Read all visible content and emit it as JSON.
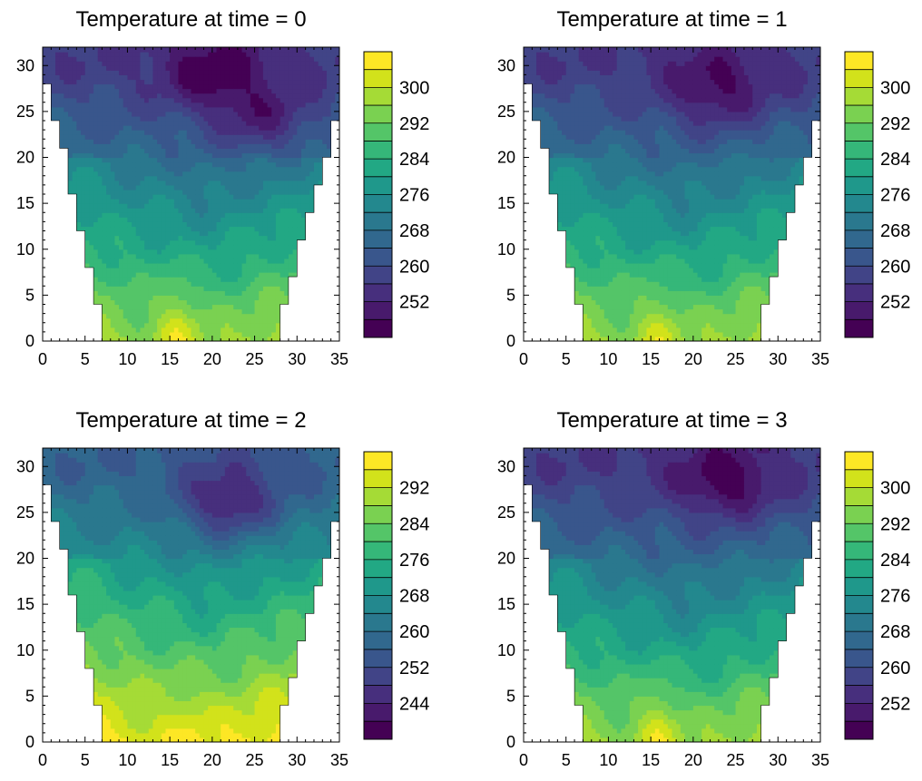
{
  "chart_data": [
    {
      "type": "contour",
      "title": "Temperature at time = 0",
      "xlim": [
        0,
        35
      ],
      "ylim": [
        0,
        32
      ],
      "xticks": [
        0,
        5,
        10,
        15,
        20,
        25,
        30,
        35
      ],
      "yticks": [
        0,
        5,
        10,
        15,
        20,
        25,
        30
      ],
      "colorbar": {
        "levels": [
          248,
          252,
          256,
          260,
          264,
          268,
          272,
          276,
          280,
          284,
          288,
          292,
          296,
          300,
          304
        ],
        "tick_labels": [
          "252",
          "260",
          "268",
          "276",
          "284",
          "292",
          "300"
        ]
      },
      "warm_core": {
        "x": 16,
        "y": 1,
        "value": 302
      },
      "cold_core": [
        {
          "x": 20,
          "y": 29,
          "value": 247
        },
        {
          "x": 26,
          "y": 24,
          "value": 248
        }
      ],
      "valley_top_y": 6
    },
    {
      "type": "contour",
      "title": "Temperature at time = 1",
      "xlim": [
        0,
        35
      ],
      "ylim": [
        0,
        32
      ],
      "xticks": [
        0,
        5,
        10,
        15,
        20,
        25,
        30,
        35
      ],
      "yticks": [
        0,
        5,
        10,
        15,
        20,
        25,
        30
      ],
      "colorbar": {
        "levels": [
          248,
          252,
          256,
          260,
          264,
          268,
          272,
          276,
          280,
          284,
          288,
          292,
          296,
          300,
          304
        ],
        "tick_labels": [
          "252",
          "260",
          "268",
          "276",
          "284",
          "292",
          "300"
        ]
      },
      "warm_core": {
        "x": 16,
        "y": 1,
        "value": 300
      },
      "cold_core": [
        {
          "x": 23,
          "y": 27,
          "value": 248
        }
      ],
      "valley_top_y": 10
    },
    {
      "type": "contour",
      "title": "Temperature at time = 2",
      "xlim": [
        0,
        35
      ],
      "ylim": [
        0,
        32
      ],
      "xticks": [
        0,
        5,
        10,
        15,
        20,
        25,
        30,
        35
      ],
      "yticks": [
        0,
        5,
        10,
        15,
        20,
        25,
        30
      ],
      "colorbar": {
        "levels": [
          240,
          244,
          248,
          252,
          256,
          260,
          264,
          268,
          272,
          276,
          280,
          284,
          288,
          292,
          296
        ],
        "tick_labels": [
          "244",
          "252",
          "260",
          "268",
          "276",
          "284",
          "292"
        ]
      },
      "warm_core": {
        "x": 17,
        "y": 1,
        "value": 296
      },
      "cold_core": [
        {
          "x": 22,
          "y": 26,
          "value": 243
        }
      ],
      "valley_top_y": 10
    },
    {
      "type": "contour",
      "title": "Temperature at time = 3",
      "xlim": [
        0,
        35
      ],
      "ylim": [
        0,
        32
      ],
      "xticks": [
        0,
        5,
        10,
        15,
        20,
        25,
        30,
        35
      ],
      "yticks": [
        0,
        5,
        10,
        15,
        20,
        25,
        30
      ],
      "colorbar": {
        "levels": [
          248,
          252,
          256,
          260,
          264,
          268,
          272,
          276,
          280,
          284,
          288,
          292,
          296,
          300,
          304
        ],
        "tick_labels": [
          "252",
          "260",
          "268",
          "276",
          "284",
          "292",
          "300"
        ]
      },
      "warm_core": {
        "x": 16,
        "y": 1,
        "value": 302
      },
      "cold_core": [
        {
          "x": 24,
          "y": 28,
          "value": 247
        }
      ],
      "valley_top_y": 11
    }
  ],
  "palette": [
    "#440154",
    "#481a6c",
    "#472f7d",
    "#414487",
    "#39568c",
    "#31688e",
    "#2a788e",
    "#23888e",
    "#1f988b",
    "#22a884",
    "#35b779",
    "#54c568",
    "#7ad151",
    "#a5db36",
    "#d2e21b",
    "#fde725"
  ]
}
